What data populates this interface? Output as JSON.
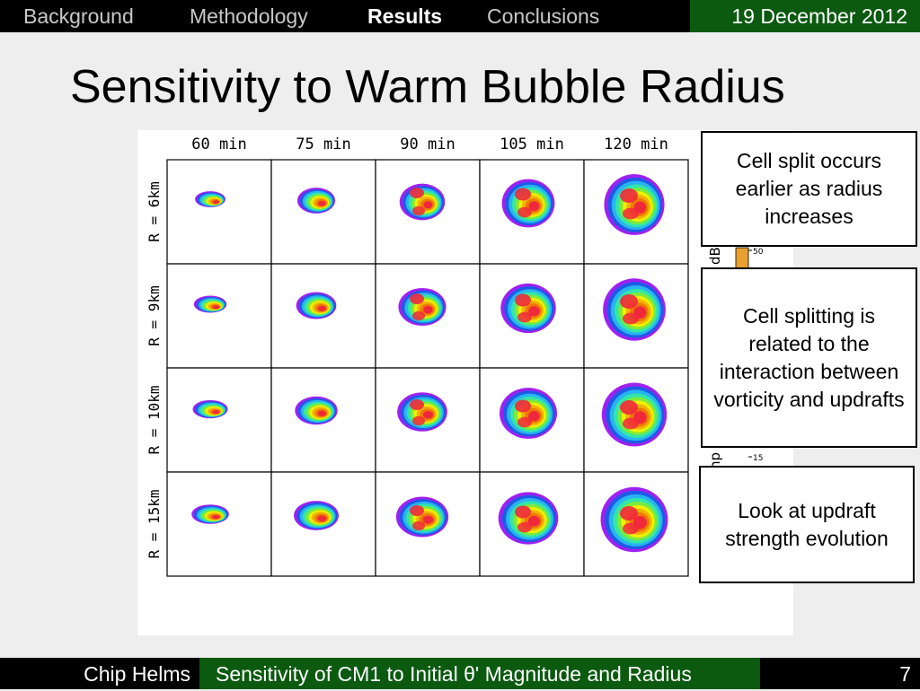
{
  "nav": {
    "items": [
      "Background",
      "Methodology",
      "Results",
      "Conclusions"
    ],
    "active": "Results",
    "date": "19 December 2012"
  },
  "title": "Sensitivity to Warm Bubble Radius",
  "figure": {
    "column_labels": [
      "60 min",
      "75 min",
      "90 min",
      "105 min",
      "120 min"
    ],
    "row_labels": [
      "R = 6km",
      "R = 9km",
      "R = 10km",
      "R = 15km"
    ],
    "colorbar": {
      "label_fragments": [
        "dB",
        "np"
      ],
      "tick_labels": [
        "50",
        "15"
      ]
    },
    "reflectivity_colors": [
      "#a020f0",
      "#1e5ae6",
      "#28b4f0",
      "#32e6aa",
      "#7dea3c",
      "#f0f000",
      "#f0b400",
      "#f07800",
      "#f0283c"
    ]
  },
  "callouts": [
    "Cell split occurs earlier as radius increases",
    "Cell splitting is related to the interaction between vorticity and updrafts",
    "Look at updraft strength evolution"
  ],
  "footer": {
    "author": "Chip Helms",
    "talk_title": "Sensitivity of CM1 to Initial θ' Magnitude and Radius",
    "page": "7"
  }
}
